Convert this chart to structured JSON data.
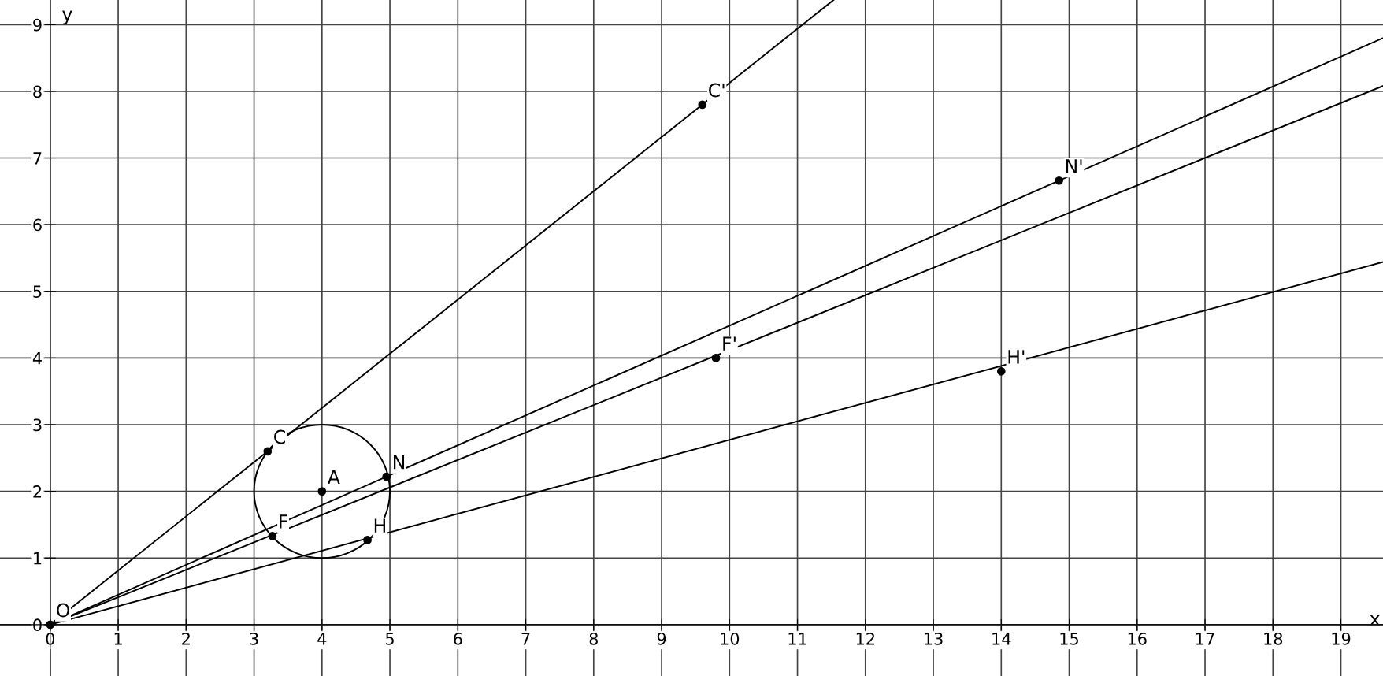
{
  "chart_data": {
    "type": "line",
    "xlabel": "x",
    "ylabel": "y",
    "xlim": [
      -0.74,
      19.62
    ],
    "ylim": [
      -0.77,
      9.37
    ],
    "xticks": [
      0,
      1,
      2,
      3,
      4,
      5,
      6,
      7,
      8,
      9,
      10,
      11,
      12,
      13,
      14,
      15,
      16,
      17,
      18,
      19
    ],
    "yticks": [
      0,
      1,
      2,
      3,
      4,
      5,
      6,
      7,
      8,
      9
    ],
    "grid": true,
    "series": [
      {
        "color": "#000000",
        "x": [
          0,
          11.53
        ],
        "values": [
          0,
          9.37
        ]
      },
      {
        "color": "#000000",
        "x": [
          0,
          19.62
        ],
        "values": [
          0,
          8.8
        ]
      },
      {
        "color": "#000000",
        "x": [
          0,
          19.62
        ],
        "values": [
          0,
          8.08
        ]
      },
      {
        "color": "#000000",
        "x": [
          0,
          19.62
        ],
        "values": [
          0,
          5.44
        ]
      },
      {
        "type": "scatter",
        "marker": "circle",
        "color": "#000000",
        "x": [
          0,
          4,
          3.2,
          9.6,
          4.95,
          14.85,
          3.27,
          9.8,
          4.67,
          14
        ],
        "values": [
          0,
          2,
          2.6,
          7.8,
          2.22,
          6.66,
          1.33,
          4.0,
          1.27,
          3.8
        ]
      }
    ],
    "annotations": [
      {
        "text": "O",
        "x": 0,
        "y": 0
      },
      {
        "text": "A",
        "x": 4,
        "y": 2
      },
      {
        "text": "C",
        "x": 3.2,
        "y": 2.6
      },
      {
        "text": "C'",
        "x": 9.6,
        "y": 7.8
      },
      {
        "text": "N",
        "x": 4.95,
        "y": 2.22
      },
      {
        "text": "N'",
        "x": 14.85,
        "y": 6.66
      },
      {
        "text": "F",
        "x": 3.27,
        "y": 1.33
      },
      {
        "text": "F'",
        "x": 9.8,
        "y": 4.0
      },
      {
        "text": "H",
        "x": 4.67,
        "y": 1.27
      },
      {
        "text": "H'",
        "x": 14,
        "y": 3.8
      }
    ]
  }
}
